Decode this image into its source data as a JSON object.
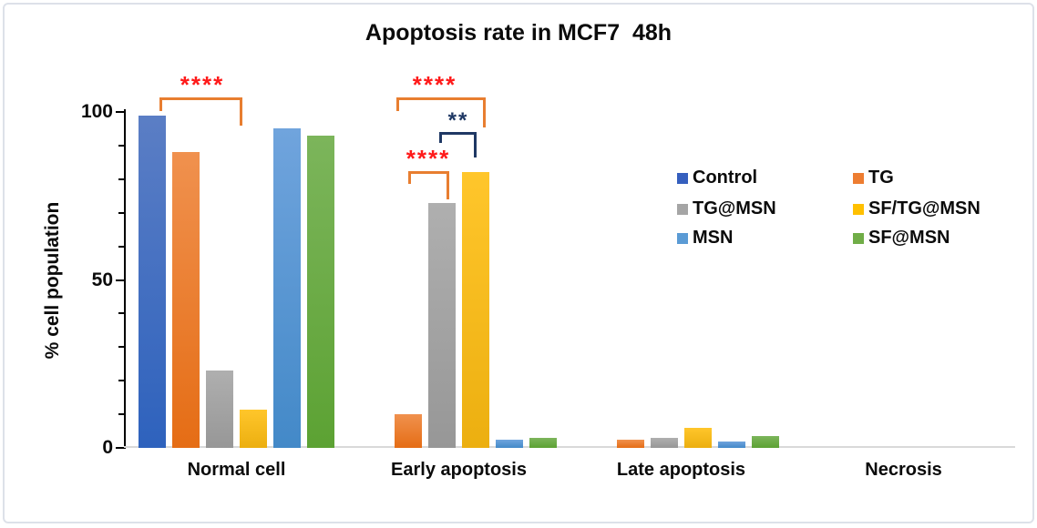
{
  "frame": {
    "border_color": "#dde1e9",
    "background": "#ffffff"
  },
  "chart_data": {
    "type": "bar",
    "title": "Apoptosis rate in MCF7  48h",
    "ylabel": "% cell population",
    "xlabel": "",
    "categories": [
      "Normal cell",
      "Early apoptosis",
      "Late apoptosis",
      "Necrosis"
    ],
    "series": [
      {
        "name": "Control",
        "color": "#355FBE",
        "gradient_top": "#5B7EC5",
        "gradient_bottom": "#2E62BD",
        "values": [
          99,
          0,
          0,
          0
        ]
      },
      {
        "name": "TG",
        "color": "#ED7D31",
        "gradient_top": "#F0914E",
        "gradient_bottom": "#E56D15",
        "values": [
          88,
          10,
          2.5,
          0
        ]
      },
      {
        "name": "TG@MSN",
        "color": "#A5A5A5",
        "gradient_top": "#AFAFAF",
        "gradient_bottom": "#979797",
        "values": [
          23,
          73,
          3,
          0
        ]
      },
      {
        "name": "SF/TG@MSN",
        "color": "#FFC000",
        "gradient_top": "#FFC62B",
        "gradient_bottom": "#ECAF10",
        "values": [
          11.5,
          82,
          6,
          0
        ]
      },
      {
        "name": "MSN",
        "color": "#5B9BD5",
        "gradient_top": "#70A4DD",
        "gradient_bottom": "#4389C8",
        "values": [
          95,
          2.5,
          2,
          0
        ]
      },
      {
        "name": "SF@MSN",
        "color": "#70AD47",
        "gradient_top": "#7CB55B",
        "gradient_bottom": "#5CA233",
        "values": [
          93,
          3,
          3.5,
          0
        ]
      }
    ],
    "ylim": [
      0,
      100
    ],
    "yticks": [
      0,
      50,
      100
    ],
    "minor_tick_step": 10,
    "grid": false,
    "legend_position": "right-center",
    "annotations": [
      {
        "stars": "****",
        "stars_color": "#ff1a1a",
        "bracket_color": "#e87e30",
        "size": 26,
        "x1": 175,
        "x2": 266,
        "y": 107,
        "drop1": 15,
        "drop2": 31,
        "sx": 222,
        "sy": 80,
        "compares": "Control vs SF/TG@MSN (Normal cell)"
      },
      {
        "stars": "****",
        "stars_color": "#ff1a1a",
        "bracket_color": "#e87e30",
        "size": 26,
        "x1": 435,
        "x2": 533,
        "y": 107,
        "drop1": 15,
        "drop2": 33,
        "sx": 477,
        "sy": 80,
        "compares": "Control vs SF/TG@MSN (Early apoptosis)"
      },
      {
        "stars": "**",
        "stars_color": "#1f3864",
        "bracket_color": "#1f3864",
        "size": 24,
        "x1": 482,
        "x2": 523,
        "y": 145,
        "drop1": 12,
        "drop2": 28,
        "sx": 503,
        "sy": 121,
        "compares": "TG@MSN vs SF/TG@MSN (Early apoptosis)"
      },
      {
        "stars": "****",
        "stars_color": "#ff1a1a",
        "bracket_color": "#e87e30",
        "size": 26,
        "x1": 448,
        "x2": 493,
        "y": 188,
        "drop1": 14,
        "drop2": 31,
        "sx": 470,
        "sy": 161,
        "compares": "TG vs TG@MSN (Early apoptosis)"
      }
    ]
  },
  "legend": {
    "columns": [
      {
        "items": [
          "Control",
          "TG@MSN",
          "MSN"
        ]
      },
      {
        "items": [
          "TG",
          "SF/TG@MSN",
          "SF@MSN"
        ]
      }
    ]
  }
}
